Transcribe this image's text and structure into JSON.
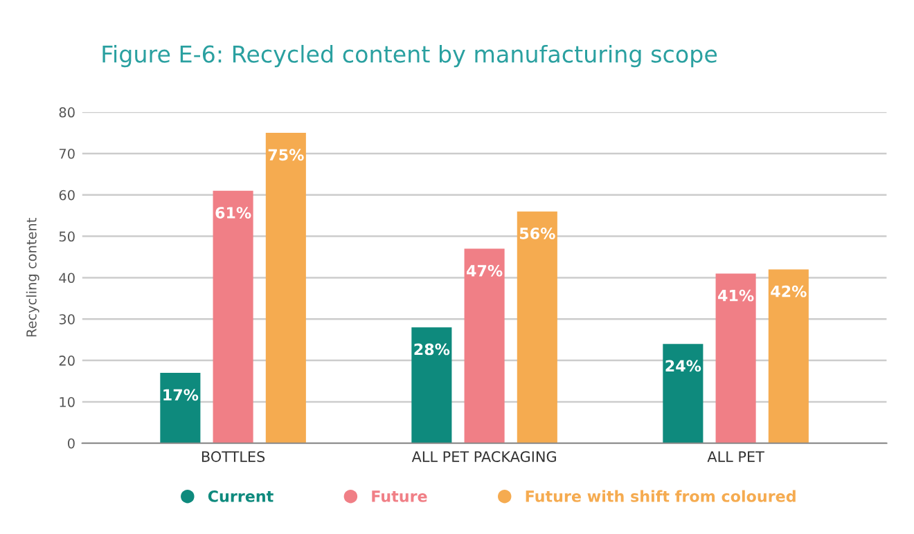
{
  "chart_data": {
    "type": "bar",
    "title": "Figure E-6: Recycled content by manufacturing scope",
    "ylabel": "Recycling content",
    "categories": [
      "BOTTLES",
      "ALL PET PACKAGING",
      "ALL PET"
    ],
    "series": [
      {
        "name": "Current",
        "color": "#0e8a7d",
        "values": [
          17,
          28,
          24
        ],
        "value_labels": [
          "17%",
          "28%",
          "24%"
        ]
      },
      {
        "name": "Future",
        "color": "#f07f86",
        "values": [
          61,
          47,
          41
        ],
        "value_labels": [
          "61%",
          "47%",
          "41%"
        ]
      },
      {
        "name": "Future with shift from coloured",
        "color": "#f5ab50",
        "values": [
          75,
          56,
          42
        ],
        "value_labels": [
          "75%",
          "56%",
          "42%"
        ]
      }
    ],
    "ylim": [
      0,
      80
    ],
    "yticks": [
      0,
      10,
      20,
      30,
      40,
      50,
      60,
      70,
      80
    ],
    "grid": "y",
    "legend": "bottom"
  }
}
